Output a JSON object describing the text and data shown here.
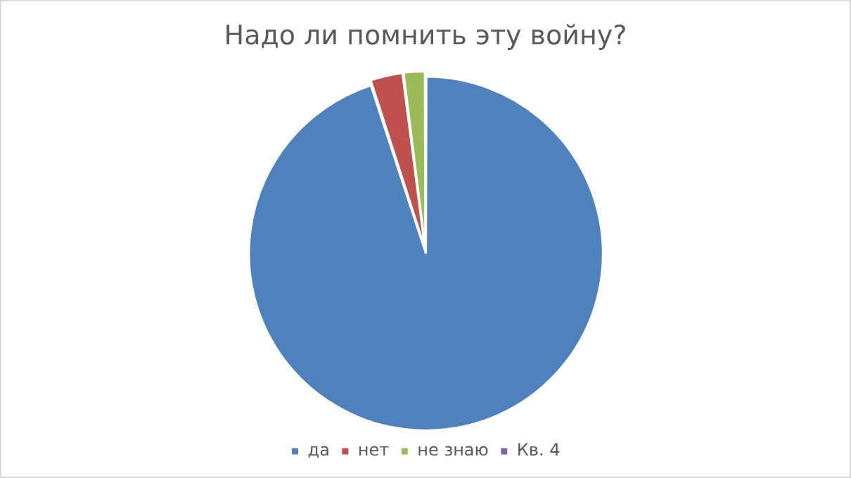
{
  "chart_data": {
    "type": "pie",
    "title": "Надо ли помнить эту войну?",
    "categories": [
      "да",
      "нет",
      "не знаю",
      "Кв. 4"
    ],
    "values": [
      95,
      3,
      2,
      0
    ],
    "colors": [
      "#4f81bd",
      "#c0504d",
      "#9bbb59",
      "#8064a2"
    ],
    "legend": "bottom"
  }
}
